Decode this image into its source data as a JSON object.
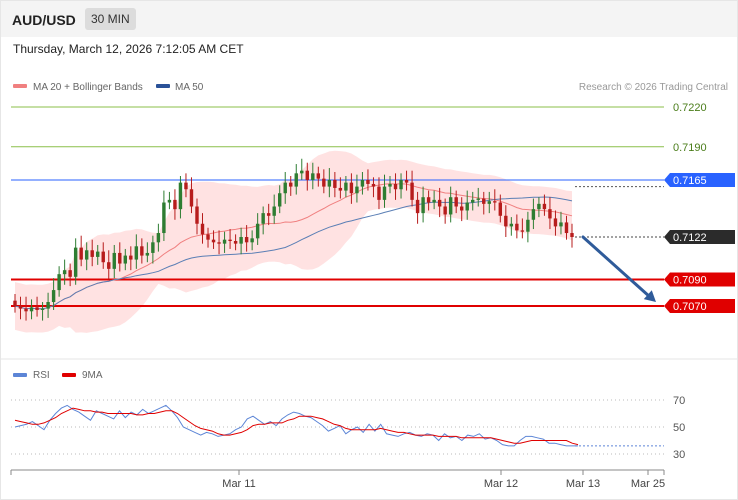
{
  "header": {
    "pair": "AUD/USD",
    "timeframe": "30 MIN",
    "datetime": "Thursday, March 12, 2026 7:12:05 AM CET"
  },
  "legend": {
    "ma20": "MA 20 + Bollinger Bands",
    "ma50": "MA 50",
    "credit": "Research © 2026 Trading Central"
  },
  "colors": {
    "bullish": "#2e7d32",
    "bearish": "#b71c1c",
    "ma20": "#f08080",
    "ma50": "#5b7fb5",
    "bollinger_fill": "#ffd8d8",
    "resistance": "#2962ff",
    "support": "#e00000",
    "target": "#8bbf4a",
    "arrow": "#2f5b9a",
    "rsi": "#5c85d6",
    "rsi_ma": "#e00000"
  },
  "chart_data": [
    {
      "type": "candlestick",
      "instrument": "AUD/USD",
      "interval": "30 MIN",
      "ylim": [
        0.705,
        0.724
      ],
      "levels": [
        {
          "value": 0.722,
          "label": "0.7220",
          "kind": "target"
        },
        {
          "value": 0.719,
          "label": "0.7190",
          "kind": "target"
        },
        {
          "value": 0.7165,
          "label": "0.7165",
          "kind": "resistance"
        },
        {
          "value": 0.7122,
          "label": "0.7122",
          "kind": "last"
        },
        {
          "value": 0.709,
          "label": "0.7090",
          "kind": "support"
        },
        {
          "value": 0.707,
          "label": "0.7070",
          "kind": "support"
        }
      ],
      "x_ticks": [
        "Mar 11",
        "Mar 12",
        "Mar 13",
        "Mar 25"
      ],
      "forecast": {
        "from": 0.7122,
        "to": 0.707
      },
      "series": [
        {
          "name": "MA 20 + Bollinger Bands",
          "kind": "ma"
        },
        {
          "name": "MA 50",
          "kind": "ma"
        }
      ],
      "close": [
        0.707,
        0.7068,
        0.7066,
        0.7069,
        0.7067,
        0.7068,
        0.7073,
        0.7082,
        0.7094,
        0.7097,
        0.7092,
        0.7114,
        0.7105,
        0.7112,
        0.7107,
        0.7111,
        0.7103,
        0.7098,
        0.711,
        0.7102,
        0.7108,
        0.7105,
        0.7115,
        0.7108,
        0.711,
        0.7118,
        0.7125,
        0.7148,
        0.715,
        0.7143,
        0.7163,
        0.7158,
        0.7145,
        0.7132,
        0.7124,
        0.712,
        0.7118,
        0.7117,
        0.712,
        0.7119,
        0.7117,
        0.7122,
        0.7118,
        0.7121,
        0.7132,
        0.714,
        0.7138,
        0.7145,
        0.7155,
        0.7163,
        0.716,
        0.717,
        0.7172,
        0.7165,
        0.717,
        0.7166,
        0.716,
        0.7165,
        0.7159,
        0.7157,
        0.7163,
        0.7155,
        0.716,
        0.7165,
        0.7162,
        0.716,
        0.715,
        0.716,
        0.7162,
        0.7158,
        0.7165,
        0.7163,
        0.715,
        0.714,
        0.7152,
        0.7148,
        0.715,
        0.7145,
        0.7139,
        0.7152,
        0.7145,
        0.7142,
        0.7148,
        0.715,
        0.7151,
        0.7147,
        0.7149,
        0.7148,
        0.7138,
        0.713,
        0.7132,
        0.7127,
        0.7126,
        0.7135,
        0.7143,
        0.7147,
        0.7143,
        0.7136,
        0.713,
        0.7133,
        0.7125,
        0.7122
      ]
    },
    {
      "type": "line",
      "title": "RSI",
      "series": [
        {
          "name": "RSI",
          "values": [
            50,
            51,
            52,
            54,
            51,
            48,
            55,
            60,
            64,
            66,
            63,
            61,
            58,
            55,
            62,
            60,
            58,
            56,
            62,
            57,
            61,
            59,
            63,
            60,
            62,
            64,
            66,
            62,
            57,
            50,
            48,
            46,
            44,
            46,
            45,
            43,
            44,
            45,
            48,
            50,
            56,
            58,
            55,
            52,
            54,
            51,
            56,
            59,
            61,
            60,
            58,
            57,
            54,
            51,
            47,
            49,
            51,
            45,
            48,
            50,
            46,
            52,
            47,
            52,
            45,
            44,
            43,
            45,
            46,
            44,
            43,
            45,
            44,
            40,
            45,
            42,
            43,
            40,
            44,
            43,
            45,
            41,
            42,
            40,
            37,
            36,
            36,
            40,
            43,
            43,
            42,
            41,
            38,
            38,
            37,
            36,
            36,
            36
          ]
        },
        {
          "name": "9MA",
          "values": [
            55,
            54,
            53,
            52,
            52,
            53,
            55,
            57,
            60,
            62,
            64,
            63,
            62,
            62,
            61,
            61,
            60,
            60,
            60,
            60,
            60,
            59,
            59,
            60,
            60,
            61,
            62,
            62,
            60,
            57,
            54,
            51,
            49,
            48,
            47,
            45,
            44,
            44,
            45,
            46,
            48,
            51,
            52,
            52,
            53,
            53,
            53,
            55,
            56,
            58,
            58,
            58,
            57,
            56,
            54,
            52,
            51,
            49,
            48,
            48,
            48,
            48,
            48,
            49,
            48,
            47,
            46,
            46,
            45,
            44,
            44,
            44,
            44,
            43,
            43,
            43,
            43,
            42,
            42,
            42,
            42,
            42,
            42,
            41,
            40,
            39,
            38,
            38,
            39,
            40,
            40,
            40,
            40,
            40,
            40,
            40,
            38,
            37
          ]
        }
      ],
      "ylim": [
        25,
        80
      ],
      "y_ticks": [
        70,
        50,
        30
      ],
      "level": 36
    }
  ]
}
